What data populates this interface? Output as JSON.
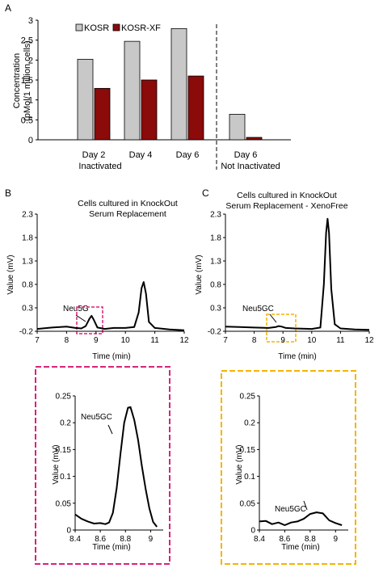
{
  "panels": {
    "a": "A",
    "b": "B",
    "c": "C"
  },
  "colors": {
    "kosr": "#c8c8c8",
    "kosr_xf": "#8b0a0a",
    "magenta_box": "#d6247a",
    "yellow_box": "#f5b400"
  },
  "chart_data": [
    {
      "id": "bar",
      "type": "bar",
      "ylabel_line1": "Concentration",
      "ylabel_line2": "(pMol/1 million cells)",
      "ylim": [
        0,
        3
      ],
      "yticks": [
        "0",
        "0.5",
        "1",
        "1.5",
        "2",
        "2.5",
        "3"
      ],
      "categories": [
        "Day 2",
        "Day 4",
        "Day 6",
        "Day 6"
      ],
      "group_labels": [
        "Inactivated",
        "Not Inactivated"
      ],
      "series": [
        {
          "name": "KOSR",
          "values": [
            2.02,
            2.47,
            2.79,
            0.64
          ]
        },
        {
          "name": "KOSR-XF",
          "values": [
            1.29,
            1.5,
            1.6,
            0.06
          ]
        }
      ],
      "legend_position": "top-left"
    },
    {
      "id": "hplcB",
      "type": "line",
      "title_line1": "Cells cultured in KnockOut",
      "title_line2": "Serum Replacement",
      "xlabel": "Time (min)",
      "ylabel": "Value (mV)",
      "xlim": [
        7,
        12
      ],
      "ylim": [
        -0.2,
        2.3
      ],
      "xticks": [
        "7",
        "8",
        "9",
        "10",
        "11",
        "12"
      ],
      "yticks": [
        "-0.2",
        "0.3",
        "0.8",
        "1.3",
        "1.8",
        "2.3"
      ],
      "annotation": "Neu5G",
      "x": [
        7,
        7.5,
        8,
        8.3,
        8.5,
        8.65,
        8.78,
        8.85,
        8.92,
        9.05,
        9.3,
        9.6,
        10,
        10.3,
        10.45,
        10.55,
        10.62,
        10.7,
        10.8,
        11,
        11.5,
        12
      ],
      "y": [
        -0.15,
        -0.12,
        -0.1,
        -0.13,
        -0.14,
        -0.09,
        0.07,
        0.13,
        0.05,
        -0.12,
        -0.15,
        -0.13,
        -0.13,
        -0.11,
        0.2,
        0.72,
        0.85,
        0.6,
        0.0,
        -0.13,
        -0.16,
        -0.18
      ]
    },
    {
      "id": "hplcC",
      "type": "line",
      "title_line1": "Cells cultured in KnockOut",
      "title_line2": "Serum Replacement - XenoFree",
      "xlabel": "Time (min)",
      "ylabel": "Value (mV)",
      "xlim": [
        7,
        12
      ],
      "ylim": [
        -0.2,
        2.3
      ],
      "xticks": [
        "7",
        "8",
        "9",
        "10",
        "11",
        "12"
      ],
      "yticks": [
        "-0.2",
        "0.3",
        "0.8",
        "1.3",
        "1.8",
        "2.3"
      ],
      "annotation": "Neu5GC",
      "x": [
        7,
        7.5,
        8,
        8.5,
        8.75,
        8.85,
        8.95,
        9.1,
        9.4,
        10,
        10.3,
        10.42,
        10.5,
        10.55,
        10.6,
        10.68,
        10.8,
        11,
        11.5,
        12
      ],
      "y": [
        -0.1,
        -0.11,
        -0.12,
        -0.13,
        -0.11,
        -0.09,
        -0.1,
        -0.13,
        -0.14,
        -0.15,
        -0.12,
        0.8,
        1.9,
        2.2,
        1.9,
        0.7,
        -0.05,
        -0.14,
        -0.16,
        -0.17
      ]
    },
    {
      "id": "zoomB",
      "type": "line",
      "xlabel": "Time (min)",
      "ylabel": "Value (mV)",
      "xlim": [
        8.4,
        9.1
      ],
      "ylim": [
        0,
        0.25
      ],
      "xticks": [
        "8.4",
        "8.6",
        "8.8",
        "9"
      ],
      "yticks": [
        "0",
        "0.05",
        "0.1",
        "0.15",
        "0.2",
        "0.25"
      ],
      "annotation": "Neu5GC",
      "x": [
        8.4,
        8.45,
        8.5,
        8.55,
        8.6,
        8.64,
        8.67,
        8.7,
        8.73,
        8.76,
        8.79,
        8.82,
        8.84,
        8.87,
        8.9,
        8.93,
        8.96,
        8.99,
        9.02,
        9.05
      ],
      "y": [
        0.029,
        0.021,
        0.016,
        0.012,
        0.013,
        0.011,
        0.014,
        0.032,
        0.078,
        0.142,
        0.2,
        0.228,
        0.229,
        0.205,
        0.168,
        0.12,
        0.077,
        0.04,
        0.015,
        0.006
      ]
    },
    {
      "id": "zoomC",
      "type": "line",
      "xlabel": "Time (min)",
      "ylabel": "Value (mV)",
      "xlim": [
        8.4,
        9.1
      ],
      "ylim": [
        0,
        0.25
      ],
      "xticks": [
        "8.4",
        "8.6",
        "8.8",
        "9"
      ],
      "yticks": [
        "0",
        "0.05",
        "0.1",
        "0.15",
        "0.2",
        "0.25"
      ],
      "annotation": "Neu5GC",
      "x": [
        8.4,
        8.45,
        8.5,
        8.55,
        8.6,
        8.65,
        8.7,
        8.75,
        8.8,
        8.85,
        8.9,
        8.95,
        9.0,
        9.05
      ],
      "y": [
        0.016,
        0.017,
        0.011,
        0.014,
        0.009,
        0.014,
        0.016,
        0.021,
        0.03,
        0.033,
        0.031,
        0.018,
        0.013,
        0.009
      ]
    }
  ]
}
